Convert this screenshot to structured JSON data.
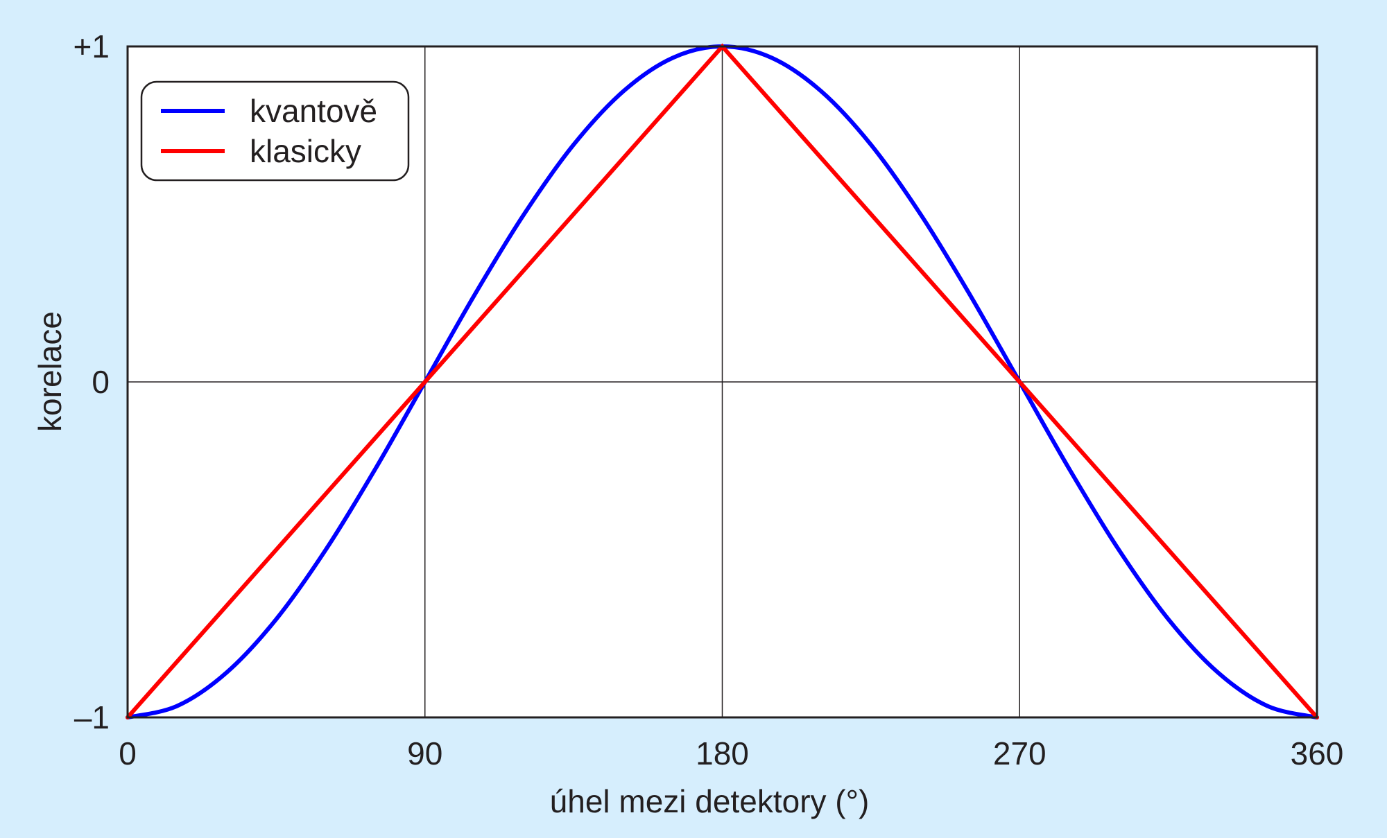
{
  "chart_data": {
    "type": "line",
    "xlabel": "úhel mezi detektory (°)",
    "ylabel": "korelace",
    "xlim": [
      0,
      360
    ],
    "ylim": [
      -1,
      1
    ],
    "x_ticks": [
      {
        "value": 0,
        "label": "0"
      },
      {
        "value": 90,
        "label": "90"
      },
      {
        "value": 180,
        "label": "180"
      },
      {
        "value": 270,
        "label": "270"
      },
      {
        "value": 360,
        "label": "360"
      }
    ],
    "y_ticks": [
      {
        "value": 1,
        "label": "+1"
      },
      {
        "value": 0,
        "label": "0"
      },
      {
        "value": -1,
        "label": "–1"
      }
    ],
    "grid": true,
    "legend_position": "top-left",
    "series": [
      {
        "name": "kvantově",
        "color": "#0000ff",
        "x": [
          0,
          15,
          30,
          45,
          60,
          75,
          90,
          105,
          120,
          135,
          150,
          165,
          180,
          195,
          210,
          225,
          240,
          255,
          270,
          285,
          300,
          315,
          330,
          345,
          360
        ],
        "y": [
          -1,
          -0.966,
          -0.866,
          -0.707,
          -0.5,
          -0.259,
          0,
          0.259,
          0.5,
          0.707,
          0.866,
          0.966,
          1,
          0.966,
          0.866,
          0.707,
          0.5,
          0.259,
          0,
          -0.259,
          -0.5,
          -0.707,
          -0.866,
          -0.966,
          -1
        ]
      },
      {
        "name": "klasicky",
        "color": "#ff0000",
        "x": [
          0,
          180,
          360
        ],
        "y": [
          -1,
          1,
          -1
        ]
      }
    ]
  }
}
